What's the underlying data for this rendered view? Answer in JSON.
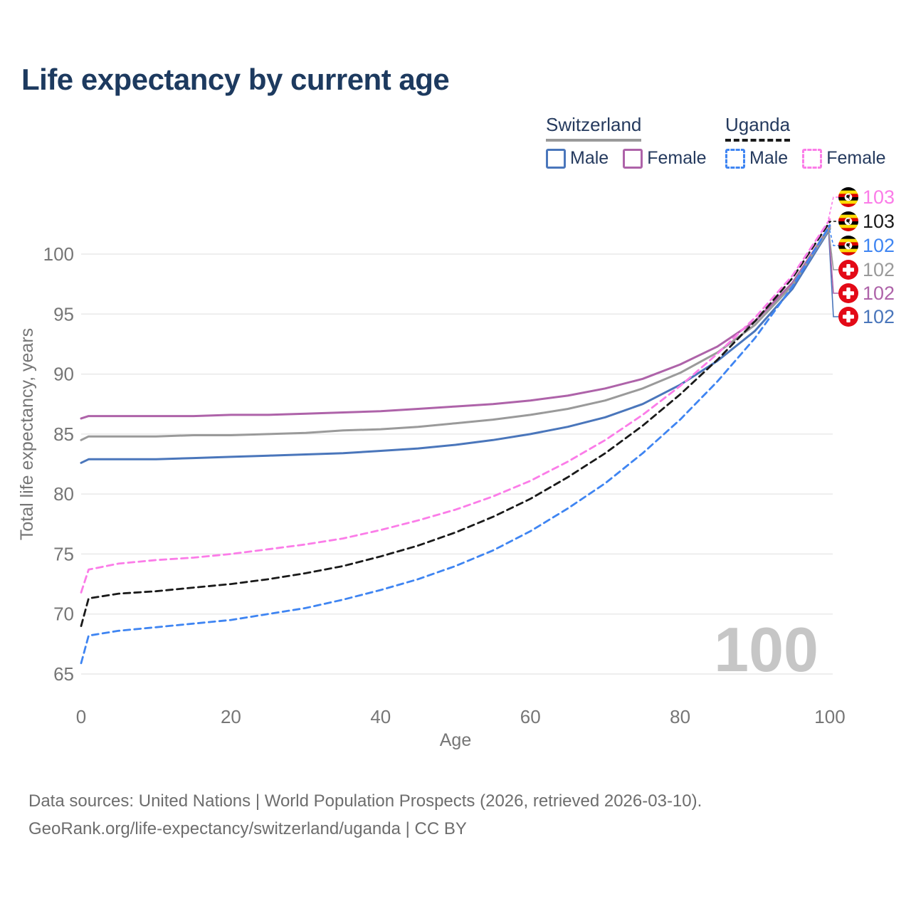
{
  "page_title": "Life expectancy by current age",
  "legend": {
    "groups": [
      {
        "label": "Switzerland",
        "line_style": "solid",
        "underline_color": "#9a9a9a",
        "items": [
          {
            "label": "Male",
            "color": "#4a76bb",
            "dashed": false
          },
          {
            "label": "Female",
            "color": "#ae63a9",
            "dashed": false
          }
        ]
      },
      {
        "label": "Uganda",
        "line_style": "dashed",
        "underline_color": "#1a1a1a",
        "items": [
          {
            "label": "Male",
            "color": "#3f85f2",
            "dashed": true
          },
          {
            "label": "Female",
            "color": "#fb7ce8",
            "dashed": true
          }
        ]
      }
    ]
  },
  "chart_data": {
    "type": "line",
    "title": "Life expectancy by current age",
    "xlabel": "Age",
    "ylabel": "Total life expectancy, years",
    "xlim": [
      0,
      100
    ],
    "ylim": [
      65,
      103.5
    ],
    "xticks": [
      0,
      20,
      40,
      60,
      80,
      100
    ],
    "yticks": [
      65,
      70,
      75,
      80,
      85,
      90,
      95,
      100
    ],
    "grid": "horizontal-only",
    "gridline_color": "#e9e9e9",
    "tick_color": "#767676",
    "watermark": "100",
    "watermark_color": "#c6c6c6",
    "x": [
      0,
      1,
      5,
      10,
      15,
      20,
      25,
      30,
      35,
      40,
      45,
      50,
      55,
      60,
      65,
      70,
      75,
      80,
      85,
      90,
      95,
      100
    ],
    "series": [
      {
        "name": "Switzerland Male",
        "country": "switzerland",
        "color": "#4a76bb",
        "dashed": false,
        "end_label": "102",
        "label_slot": 5,
        "values": [
          82.6,
          82.9,
          82.9,
          82.9,
          83.0,
          83.1,
          83.2,
          83.3,
          83.4,
          83.6,
          83.8,
          84.1,
          84.5,
          85.0,
          85.6,
          86.4,
          87.5,
          89.1,
          91.1,
          93.6,
          97.1,
          102.1
        ]
      },
      {
        "name": "Switzerland Female",
        "country": "switzerland",
        "color": "#ae63a9",
        "dashed": false,
        "end_label": "102",
        "label_slot": 4,
        "values": [
          86.3,
          86.5,
          86.5,
          86.5,
          86.5,
          86.6,
          86.6,
          86.7,
          86.8,
          86.9,
          87.1,
          87.3,
          87.5,
          87.8,
          88.2,
          88.8,
          89.6,
          90.8,
          92.3,
          94.4,
          97.6,
          102.3
        ]
      },
      {
        "name": "Switzerland",
        "country": "switzerland",
        "color": "#9a9a9a",
        "dashed": false,
        "end_label": "102",
        "label_slot": 3,
        "values": [
          84.5,
          84.8,
          84.8,
          84.8,
          84.9,
          84.9,
          85.0,
          85.1,
          85.3,
          85.4,
          85.6,
          85.9,
          86.2,
          86.6,
          87.1,
          87.8,
          88.8,
          90.1,
          91.8,
          94.1,
          97.4,
          102.2
        ]
      },
      {
        "name": "Uganda Male",
        "country": "uganda",
        "color": "#3f85f2",
        "dashed": true,
        "end_label": "102",
        "label_slot": 2,
        "values": [
          65.9,
          68.2,
          68.6,
          68.9,
          69.2,
          69.5,
          70.0,
          70.5,
          71.2,
          72.0,
          72.9,
          74.0,
          75.3,
          76.9,
          78.8,
          80.9,
          83.4,
          86.2,
          89.4,
          93.0,
          97.3,
          102.4
        ]
      },
      {
        "name": "Uganda",
        "country": "uganda",
        "color": "#1a1a1a",
        "dashed": true,
        "end_label": "103",
        "label_slot": 1,
        "values": [
          69.0,
          71.3,
          71.7,
          71.9,
          72.2,
          72.5,
          72.9,
          73.4,
          74.0,
          74.8,
          75.7,
          76.8,
          78.1,
          79.6,
          81.4,
          83.4,
          85.7,
          88.3,
          91.2,
          94.4,
          98.0,
          102.7
        ]
      },
      {
        "name": "Uganda Female",
        "country": "uganda",
        "color": "#fb7ce8",
        "dashed": true,
        "end_label": "103",
        "label_slot": 0,
        "values": [
          71.8,
          73.7,
          74.2,
          74.5,
          74.7,
          75.0,
          75.4,
          75.8,
          76.3,
          77.0,
          77.8,
          78.7,
          79.8,
          81.1,
          82.7,
          84.5,
          86.6,
          89.0,
          91.7,
          94.7,
          98.2,
          102.9
        ]
      }
    ],
    "flag_colors": {
      "uganda_stripes": [
        "#000000",
        "#fcdc04",
        "#d90000",
        "#000000",
        "#fcdc04",
        "#d90000"
      ],
      "switzerland_red": "#e30a17"
    }
  },
  "footer": {
    "line1": "Data sources: United Nations | World Population Prospects (2026, retrieved 2026-03-10).",
    "line2": "GeoRank.org/life-expectancy/switzerland/uganda | CC BY"
  }
}
